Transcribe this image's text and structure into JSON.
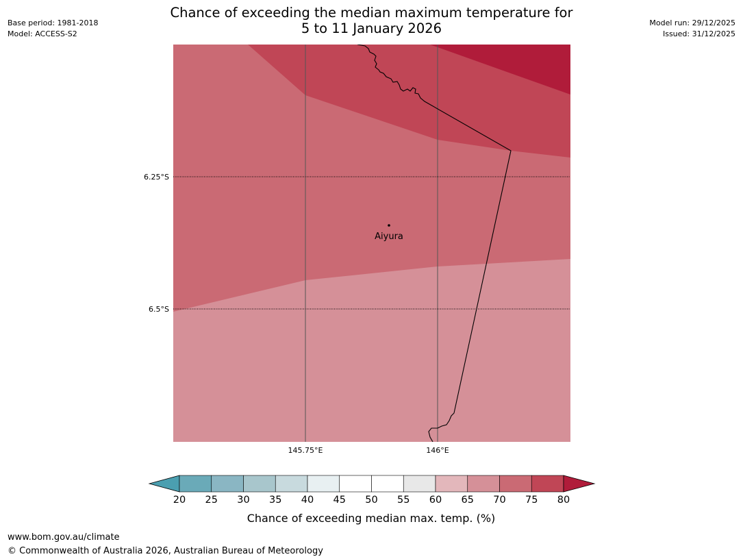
{
  "header": {
    "title_line1": "Chance of exceeding the median maximum temperature for",
    "title_line2": "5 to 11 January 2026",
    "base_period": "Base period: 1981-2018",
    "model": "Model: ACCESS-S2",
    "model_run": "Model run: 29/12/2025",
    "issued": "Issued: 31/12/2025"
  },
  "map": {
    "latitude_labels": [
      "6.25°S",
      "6.5°S"
    ],
    "longitude_labels": [
      "145.75°E",
      "146°E"
    ],
    "place_label": "Aiyura",
    "zone_colors": {
      "band_65_70": "#d59098",
      "band_70_75": "#ca6a74",
      "band_75_80": "#c04656",
      "band_above_80": "#b01c3a"
    }
  },
  "legend": {
    "title": "Chance of exceeding median max. temp. (%)",
    "ticks": [
      "20",
      "25",
      "30",
      "35",
      "40",
      "45",
      "50",
      "55",
      "60",
      "65",
      "70",
      "75",
      "80"
    ],
    "low_extend_color": "#4b9fb0",
    "high_extend_color": "#b01c3a",
    "segment_colors": [
      "#6aaab8",
      "#8ab6c3",
      "#a8c6cc",
      "#c8dade",
      "#e8f0f2",
      "#ffffff",
      "#ffffff",
      "#e8e8e8",
      "#e3b7bb",
      "#d59098",
      "#ca6a74",
      "#c04656"
    ]
  },
  "footer": {
    "url": "www.bom.gov.au/climate",
    "copyright": "© Commonwealth of Australia 2026, Australian Bureau of Meteorology"
  }
}
